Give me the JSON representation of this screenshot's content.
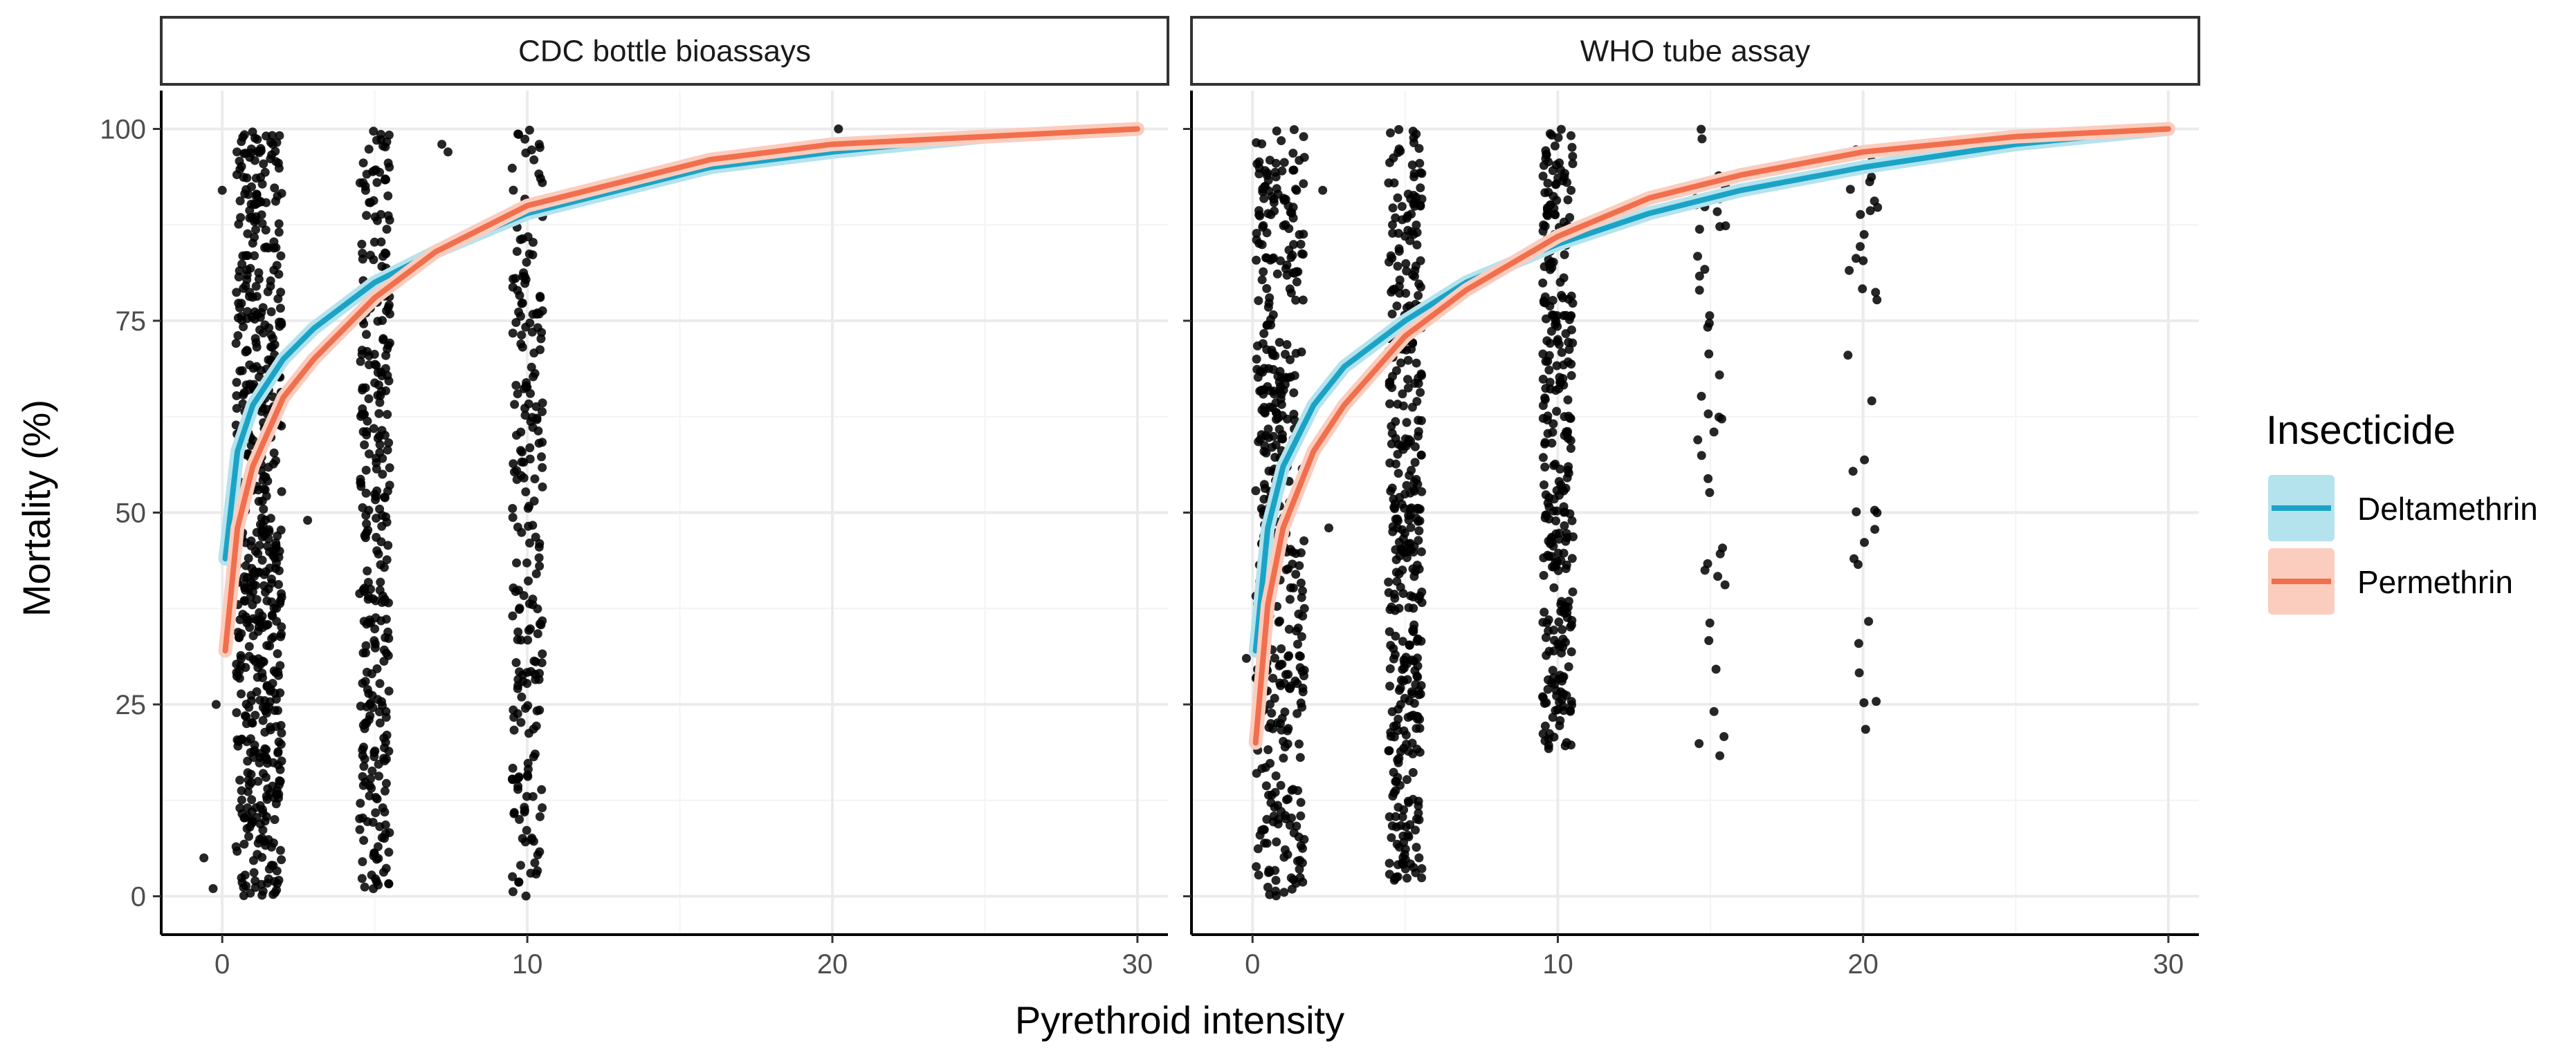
{
  "chart_data": {
    "type": "scatter",
    "ylabel": "Mortality (%)",
    "xlabel": "Pyrethroid intensity",
    "xlim": [
      -2,
      31
    ],
    "ylim": [
      -5,
      105
    ],
    "x_ticks": [
      0,
      10,
      20,
      30
    ],
    "y_ticks": [
      0,
      25,
      50,
      75,
      100
    ],
    "grid": true,
    "legend": {
      "title": "Insecticide",
      "placement": "right",
      "entries": [
        {
          "name": "Deltamethrin",
          "color": "#1BA3C6",
          "fill": "#B4E3EE"
        },
        {
          "name": "Permethrin",
          "color": "#F16F4D",
          "fill": "#FBCDBE"
        }
      ]
    },
    "point_color": "#000000",
    "panels": [
      {
        "title": "CDC bottle bioassays",
        "point_clusters": [
          {
            "x_center": 1.2,
            "x_spread": 0.75,
            "count": 560,
            "y_min": 0,
            "y_max": 100
          },
          {
            "x_center": 5,
            "x_spread": 0.5,
            "count": 300,
            "y_min": 0,
            "y_max": 100
          },
          {
            "x_center": 10,
            "x_spread": 0.5,
            "count": 220,
            "y_min": 0,
            "y_max": 100
          }
        ],
        "outlier_points": [
          {
            "x": -0.6,
            "y": 5
          },
          {
            "x": -0.3,
            "y": 1
          },
          {
            "x": -0.2,
            "y": 25
          },
          {
            "x": 0,
            "y": 92
          },
          {
            "x": 2.8,
            "y": 49
          },
          {
            "x": 7.2,
            "y": 98
          },
          {
            "x": 7.4,
            "y": 97
          },
          {
            "x": 20.2,
            "y": 100
          }
        ],
        "series": [
          {
            "name": "Deltamethrin",
            "x": [
              0.1,
              0.5,
              1,
              2,
              3,
              5,
              7,
              10,
              13,
              16,
              20,
              25,
              30
            ],
            "y": [
              44,
              58,
              64,
              70,
              74,
              80,
              84,
              89,
              92,
              95,
              97,
              99,
              100
            ]
          },
          {
            "name": "Permethrin",
            "x": [
              0.1,
              0.5,
              1,
              2,
              3,
              5,
              7,
              10,
              13,
              16,
              20,
              25,
              30
            ],
            "y": [
              32,
              48,
              56,
              65,
              70,
              78,
              84,
              90,
              93,
              96,
              98,
              99,
              100
            ]
          }
        ]
      },
      {
        "title": "WHO tube assay",
        "point_clusters": [
          {
            "x_center": 0.9,
            "x_spread": 0.8,
            "count": 420,
            "y_min": 0,
            "y_max": 100
          },
          {
            "x_center": 5,
            "x_spread": 0.55,
            "count": 380,
            "y_min": 2,
            "y_max": 100
          },
          {
            "x_center": 10,
            "x_spread": 0.5,
            "count": 300,
            "y_min": 19,
            "y_max": 100
          },
          {
            "x_center": 15,
            "x_spread": 0.5,
            "count": 45,
            "y_min": 17,
            "y_max": 100
          },
          {
            "x_center": 20,
            "x_spread": 0.5,
            "count": 35,
            "y_min": 20,
            "y_max": 100
          }
        ],
        "outlier_points": [
          {
            "x": -0.2,
            "y": 31
          },
          {
            "x": 2.5,
            "y": 48
          },
          {
            "x": 2.3,
            "y": 92
          }
        ],
        "series": [
          {
            "name": "Deltamethrin",
            "x": [
              0.1,
              0.5,
              1,
              2,
              3,
              5,
              7,
              10,
              13,
              16,
              20,
              25,
              30
            ],
            "y": [
              32,
              48,
              56,
              64,
              69,
              75,
              80,
              85,
              89,
              92,
              95,
              98,
              100
            ]
          },
          {
            "name": "Permethrin",
            "x": [
              0.1,
              0.5,
              1,
              2,
              3,
              5,
              7,
              10,
              13,
              16,
              20,
              25,
              30
            ],
            "y": [
              20,
              38,
              48,
              58,
              64,
              73,
              79,
              86,
              91,
              94,
              97,
              99,
              100
            ]
          }
        ]
      }
    ]
  }
}
